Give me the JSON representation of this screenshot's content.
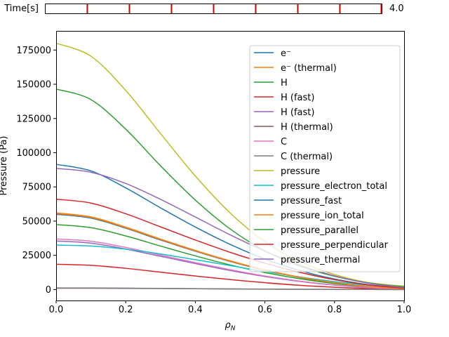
{
  "slider": {
    "label": "Time[s]",
    "value_text": "4.0",
    "value": 4.0,
    "min": 0.0,
    "max": 4.0,
    "tick_values": [
      0.5,
      1.0,
      1.5,
      2.0,
      2.5,
      3.0,
      3.5,
      4.0
    ],
    "edge_color": "#000000",
    "tick_color": "#cc0000"
  },
  "chart_data": {
    "type": "line",
    "xlabel": "ρN",
    "xlabel_main": "ρ",
    "xlabel_sub": "N",
    "ylabel": "Pressure (Pa)",
    "xlim": [
      0.0,
      1.0
    ],
    "ylim": [
      -8000,
      189000
    ],
    "xticks": [
      0.0,
      0.2,
      0.4,
      0.6,
      0.8,
      1.0
    ],
    "xtick_labels": [
      "0.0",
      "0.2",
      "0.4",
      "0.6",
      "0.8",
      "1.0"
    ],
    "yticks": [
      0,
      25000,
      50000,
      75000,
      100000,
      125000,
      150000,
      175000
    ],
    "ytick_labels": [
      "0",
      "25000",
      "50000",
      "75000",
      "100000",
      "125000",
      "150000",
      "175000"
    ],
    "grid": false,
    "legend_position": "top-right",
    "x": [
      0.0,
      0.1,
      0.2,
      0.3,
      0.4,
      0.5,
      0.6,
      0.7,
      0.8,
      0.9,
      1.0
    ],
    "series": [
      {
        "name": "e⁻",
        "color": "#1f77b4",
        "values": [
          55000,
          52200,
          44800,
          36200,
          28000,
          20500,
          14000,
          8800,
          4800,
          2000,
          500
        ]
      },
      {
        "name": "e⁻ (thermal)",
        "color": "#ff7f0e",
        "values": [
          56000,
          53100,
          45600,
          36900,
          28600,
          21000,
          14400,
          9100,
          5000,
          2100,
          500
        ]
      },
      {
        "name": "H",
        "color": "#2ca02c",
        "values": [
          47500,
          45200,
          39200,
          31800,
          24600,
          18000,
          12400,
          7900,
          4400,
          1900,
          500
        ]
      },
      {
        "name": "H (fast)",
        "color": "#d62728",
        "values": [
          18500,
          17700,
          15500,
          12700,
          9900,
          7300,
          5000,
          3100,
          1700,
          700,
          200
        ]
      },
      {
        "name": "H (fast)",
        "color": "#9467bd",
        "values": [
          35500,
          33900,
          29600,
          24300,
          19000,
          13900,
          9500,
          5900,
          3200,
          1300,
          300
        ]
      },
      {
        "name": "H (thermal)",
        "color": "#8c564b",
        "values": [
          1000,
          960,
          850,
          710,
          560,
          420,
          290,
          190,
          110,
          50,
          10
        ]
      },
      {
        "name": "C",
        "color": "#e377c2",
        "values": [
          37000,
          35300,
          30800,
          25200,
          19700,
          14500,
          9900,
          6200,
          3400,
          1400,
          300
        ]
      },
      {
        "name": "C (thermal)",
        "color": "#7f7f7f",
        "values": [
          1200,
          1150,
          1020,
          850,
          670,
          500,
          350,
          220,
          120,
          50,
          10
        ]
      },
      {
        "name": "pressure",
        "color": "#bcbd22",
        "values": [
          180000,
          170500,
          145500,
          114000,
          83000,
          56000,
          35000,
          20500,
          11000,
          5000,
          2500
        ]
      },
      {
        "name": "pressure_electron_total",
        "color": "#17becf",
        "values": [
          32500,
          31800,
          29500,
          26000,
          21800,
          17500,
          13200,
          9200,
          5800,
          3000,
          1000
        ]
      },
      {
        "name": "pressure_fast",
        "color": "#1f77b4",
        "values": [
          91500,
          86700,
          74300,
          59700,
          45700,
          33000,
          22300,
          13900,
          7700,
          3500,
          1200
        ]
      },
      {
        "name": "pressure_ion_total",
        "color": "#ff7f0e",
        "values": [
          55500,
          52700,
          45200,
          36600,
          28300,
          20800,
          14200,
          9000,
          5000,
          2200,
          600
        ]
      },
      {
        "name": "pressure_parallel",
        "color": "#2ca02c",
        "values": [
          146500,
          138800,
          117200,
          90400,
          65400,
          44300,
          28300,
          17200,
          9700,
          4700,
          2000
        ]
      },
      {
        "name": "pressure_perpendicular",
        "color": "#d62728",
        "values": [
          66000,
          63200,
          55400,
          45800,
          36200,
          27200,
          19300,
          12600,
          7200,
          3300,
          1000
        ]
      },
      {
        "name": "pressure_thermal",
        "color": "#9467bd",
        "values": [
          88500,
          85700,
          77500,
          65900,
          53000,
          40000,
          28100,
          18000,
          10000,
          4500,
          1500
        ]
      }
    ]
  }
}
